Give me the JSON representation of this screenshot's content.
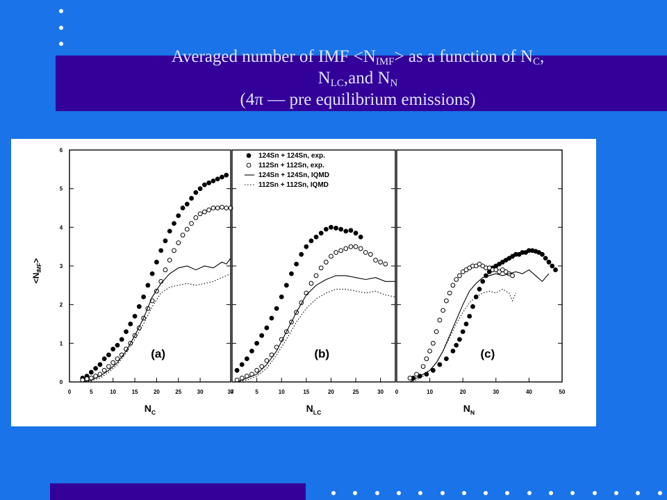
{
  "slide": {
    "colors": {
      "background": "#1a73e8",
      "band": "#330099",
      "title": "#dfe3ff"
    },
    "title": {
      "p1": "Averaged number of IMF <N",
      "s1": "IMF",
      "p2": "> as a function of N",
      "s2": "C",
      "p3": ",",
      "p4": "N",
      "s4": "LC",
      "p5": ",and N",
      "s5": "N",
      "p6": "(4π — pre equilibrium emissions)"
    }
  },
  "chart_data": {
    "type": "scatter",
    "ylabel": "<N_IMF>",
    "ylim": [
      0,
      6
    ],
    "yticks": [
      "0",
      "1",
      "2",
      "3",
      "4",
      "5",
      "6"
    ],
    "legend": {
      "placement": "top-left of panel (b)",
      "entries": [
        {
          "label": "124Sn + 124Sn, exp.",
          "style": "filled"
        },
        {
          "label": "112Sn + 112Sn, exp.",
          "style": "open"
        },
        {
          "label": "124Sn + 124Sn, IQMD",
          "style": "solid"
        },
        {
          "label": "112Sn + 112Sn, IQMD",
          "style": "dotted"
        }
      ]
    },
    "panels": [
      {
        "panel_label": "(a)",
        "xlabel": "N_C",
        "xlim": [
          0,
          37
        ],
        "xticks": [
          "0",
          "5",
          "10",
          "15",
          "20",
          "25",
          "30",
          "37"
        ],
        "series": [
          {
            "name": "124Sn + 124Sn, exp.",
            "style": "filled",
            "x": [
              3,
              4,
              5,
              6,
              7,
              8,
              9,
              10,
              11,
              12,
              13,
              14,
              15,
              16,
              17,
              18,
              19,
              20,
              21,
              22,
              23,
              24,
              25,
              26,
              27,
              28,
              29,
              30,
              31,
              32,
              33,
              34,
              35,
              36
            ],
            "y": [
              0.1,
              0.15,
              0.25,
              0.35,
              0.45,
              0.6,
              0.7,
              0.85,
              0.95,
              1.1,
              1.3,
              1.5,
              1.7,
              1.95,
              2.2,
              2.5,
              2.8,
              3.1,
              3.4,
              3.65,
              3.9,
              4.1,
              4.3,
              4.5,
              4.6,
              4.75,
              4.9,
              5.0,
              5.1,
              5.15,
              5.2,
              5.25,
              5.3,
              5.35
            ]
          },
          {
            "name": "112Sn + 112Sn, exp.",
            "style": "open",
            "x": [
              3,
              4,
              5,
              6,
              7,
              8,
              9,
              10,
              11,
              12,
              13,
              14,
              15,
              16,
              17,
              18,
              19,
              20,
              21,
              22,
              23,
              24,
              25,
              26,
              27,
              28,
              29,
              30,
              31,
              32,
              33,
              34,
              35,
              36,
              37
            ],
            "y": [
              0.05,
              0.08,
              0.1,
              0.15,
              0.2,
              0.3,
              0.4,
              0.5,
              0.6,
              0.7,
              0.85,
              1.0,
              1.2,
              1.4,
              1.65,
              1.9,
              2.1,
              2.35,
              2.6,
              2.9,
              3.15,
              3.4,
              3.6,
              3.8,
              3.95,
              4.1,
              4.25,
              4.35,
              4.4,
              4.45,
              4.5,
              4.5,
              4.52,
              4.5,
              4.5
            ]
          },
          {
            "name": "124Sn + 124Sn, IQMD",
            "style": "solid",
            "x": [
              3,
              5,
              7,
              9,
              11,
              13,
              15,
              17,
              19,
              21,
              23,
              25,
              27,
              29,
              31,
              33,
              35,
              36,
              37
            ],
            "y": [
              0.0,
              0.05,
              0.15,
              0.3,
              0.5,
              0.8,
              1.2,
              1.65,
              2.2,
              2.55,
              2.8,
              2.95,
              3.0,
              2.9,
              3.0,
              2.95,
              3.1,
              3.05,
              3.2
            ]
          },
          {
            "name": "112Sn + 112Sn, IQMD",
            "style": "dotted",
            "x": [
              3,
              5,
              7,
              9,
              11,
              13,
              15,
              17,
              19,
              21,
              23,
              25,
              27,
              29,
              31,
              33,
              35,
              37
            ],
            "y": [
              0.0,
              0.03,
              0.1,
              0.25,
              0.45,
              0.75,
              1.1,
              1.5,
              1.95,
              2.3,
              2.45,
              2.5,
              2.55,
              2.5,
              2.55,
              2.6,
              2.7,
              2.8
            ]
          }
        ]
      },
      {
        "panel_label": "(b)",
        "xlabel": "N_LC",
        "xlim": [
          0,
          33
        ],
        "xticks": [
          "0",
          "5",
          "10",
          "15",
          "20",
          "25",
          "30"
        ],
        "series": [
          {
            "name": "124Sn + 124Sn, exp.",
            "style": "filled",
            "x": [
              1,
              2,
              3,
              4,
              5,
              6,
              7,
              8,
              9,
              10,
              11,
              12,
              13,
              14,
              15,
              16,
              17,
              18,
              19,
              20,
              21,
              22,
              23,
              24,
              25,
              26
            ],
            "y": [
              0.3,
              0.45,
              0.6,
              0.8,
              1.0,
              1.2,
              1.4,
              1.65,
              1.9,
              2.2,
              2.5,
              2.8,
              3.05,
              3.3,
              3.5,
              3.65,
              3.75,
              3.85,
              3.95,
              4.0,
              3.98,
              3.95,
              3.9,
              3.92,
              3.85,
              3.75
            ]
          },
          {
            "name": "112Sn + 112Sn, exp.",
            "style": "open",
            "x": [
              1,
              2,
              3,
              4,
              5,
              6,
              7,
              8,
              9,
              10,
              11,
              12,
              13,
              14,
              15,
              16,
              17,
              18,
              19,
              20,
              21,
              22,
              23,
              24,
              25,
              26,
              27,
              28,
              29,
              30,
              31
            ],
            "y": [
              0.05,
              0.1,
              0.15,
              0.2,
              0.3,
              0.4,
              0.55,
              0.7,
              0.9,
              1.1,
              1.3,
              1.55,
              1.8,
              2.05,
              2.3,
              2.55,
              2.75,
              2.95,
              3.1,
              3.25,
              3.35,
              3.4,
              3.45,
              3.5,
              3.5,
              3.45,
              3.35,
              3.3,
              3.15,
              3.1,
              3.05
            ]
          },
          {
            "name": "124Sn + 124Sn, IQMD",
            "style": "solid",
            "x": [
              1,
              3,
              5,
              7,
              9,
              11,
              13,
              15,
              17,
              19,
              21,
              23,
              25,
              27,
              29,
              31,
              33
            ],
            "y": [
              0.0,
              0.1,
              0.2,
              0.45,
              0.8,
              1.3,
              1.8,
              2.25,
              2.5,
              2.65,
              2.75,
              2.75,
              2.7,
              2.65,
              2.7,
              2.6,
              2.6
            ]
          },
          {
            "name": "112Sn + 112Sn, IQMD",
            "style": "dotted",
            "x": [
              1,
              3,
              5,
              7,
              9,
              11,
              13,
              15,
              17,
              19,
              21,
              23,
              25,
              27,
              29,
              31,
              33
            ],
            "y": [
              0.0,
              0.05,
              0.15,
              0.35,
              0.7,
              1.1,
              1.55,
              1.9,
              2.15,
              2.3,
              2.4,
              2.4,
              2.35,
              2.3,
              2.35,
              2.25,
              2.2
            ]
          }
        ]
      },
      {
        "panel_label": "(c)",
        "xlabel": "N_N",
        "xlim": [
          0,
          50
        ],
        "xticks": [
          "0",
          "10",
          "20",
          "30",
          "40",
          "50"
        ],
        "series": [
          {
            "name": "124Sn + 124Sn, exp.",
            "style": "filled",
            "x": [
              5,
              7,
              9,
              11,
              13,
              15,
              17,
              18,
              19,
              20,
              21,
              22,
              23,
              24,
              25,
              26,
              27,
              28,
              29,
              30,
              31,
              32,
              33,
              34,
              35,
              36,
              37,
              38,
              39,
              40,
              41,
              42,
              43,
              44,
              45,
              46,
              47,
              48
            ],
            "y": [
              0.1,
              0.15,
              0.2,
              0.3,
              0.45,
              0.6,
              0.8,
              0.95,
              1.1,
              1.3,
              1.5,
              1.7,
              1.95,
              2.2,
              2.4,
              2.6,
              2.75,
              2.85,
              2.95,
              3.0,
              3.05,
              3.1,
              3.15,
              3.2,
              3.25,
              3.3,
              3.3,
              3.35,
              3.35,
              3.4,
              3.4,
              3.38,
              3.35,
              3.3,
              3.2,
              3.1,
              3.0,
              2.9
            ]
          },
          {
            "name": "112Sn + 112Sn, exp.",
            "style": "open",
            "x": [
              4,
              6,
              8,
              9,
              10,
              11,
              12,
              13,
              14,
              15,
              16,
              17,
              18,
              19,
              20,
              21,
              22,
              23,
              24,
              25,
              26,
              27,
              28,
              29,
              30,
              31,
              32,
              33,
              34,
              35
            ],
            "y": [
              0.1,
              0.2,
              0.4,
              0.6,
              0.8,
              1.0,
              1.3,
              1.6,
              1.85,
              2.1,
              2.3,
              2.5,
              2.65,
              2.75,
              2.85,
              2.9,
              2.95,
              3.0,
              3.0,
              3.05,
              3.0,
              2.95,
              2.95,
              2.9,
              2.9,
              2.85,
              2.9,
              2.85,
              2.8,
              2.75
            ]
          },
          {
            "name": "124Sn + 124Sn, IQMD",
            "style": "solid",
            "x": [
              4,
              6,
              8,
              10,
              12,
              14,
              16,
              18,
              20,
              22,
              24,
              26,
              28,
              30,
              32,
              34,
              36,
              38,
              40,
              42,
              44,
              45,
              46
            ],
            "y": [
              0.0,
              0.1,
              0.2,
              0.3,
              0.5,
              0.8,
              1.2,
              1.6,
              2.0,
              2.35,
              2.55,
              2.7,
              2.75,
              2.8,
              2.75,
              2.8,
              2.85,
              2.8,
              2.9,
              2.75,
              2.6,
              2.7,
              2.8
            ]
          },
          {
            "name": "112Sn + 112Sn, IQMD",
            "style": "dotted",
            "x": [
              4,
              6,
              8,
              10,
              12,
              14,
              16,
              18,
              20,
              22,
              24,
              26,
              28,
              30,
              32,
              34,
              35,
              36
            ],
            "y": [
              0.0,
              0.05,
              0.15,
              0.3,
              0.5,
              0.8,
              1.15,
              1.5,
              1.8,
              2.05,
              2.2,
              2.3,
              2.35,
              2.3,
              2.4,
              2.3,
              2.1,
              2.3
            ]
          }
        ]
      }
    ]
  }
}
